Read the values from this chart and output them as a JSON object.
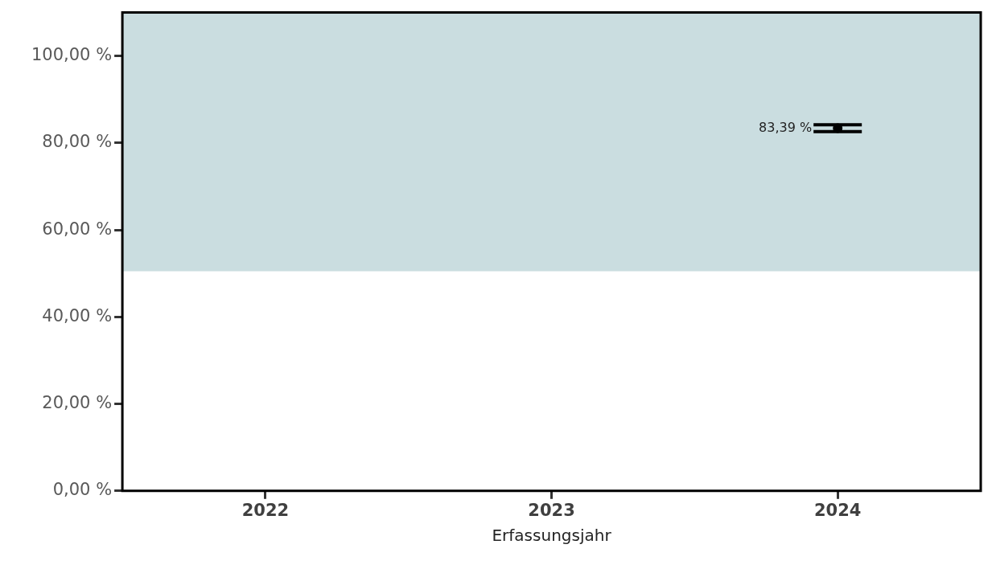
{
  "chart_data": {
    "type": "scatter",
    "xlabel": "Erfassungsjahr",
    "categories": [
      "2022",
      "2023",
      "2024"
    ],
    "series": [
      {
        "color": "#000000",
        "values": [
          null,
          null,
          83.39
        ],
        "errors": [
          null,
          null,
          [
            82.6,
            84.2
          ]
        ],
        "value_labels": [
          null,
          null,
          "83,39 %"
        ]
      }
    ],
    "ylim": [
      0,
      110
    ],
    "yticks": [
      {
        "value": 0,
        "label": "0,00 %"
      },
      {
        "value": 20,
        "label": "20,00 %"
      },
      {
        "value": 40,
        "label": "40,00 %"
      },
      {
        "value": 60,
        "label": "60,00 %"
      },
      {
        "value": 80,
        "label": "80,00 %"
      },
      {
        "value": 100,
        "label": "100,00 %"
      }
    ],
    "bands": [
      {
        "axis": "y",
        "from": 50.5,
        "to": 110,
        "color": "#cadde0"
      }
    ],
    "grid": false,
    "legend": false,
    "marker": "circle"
  }
}
